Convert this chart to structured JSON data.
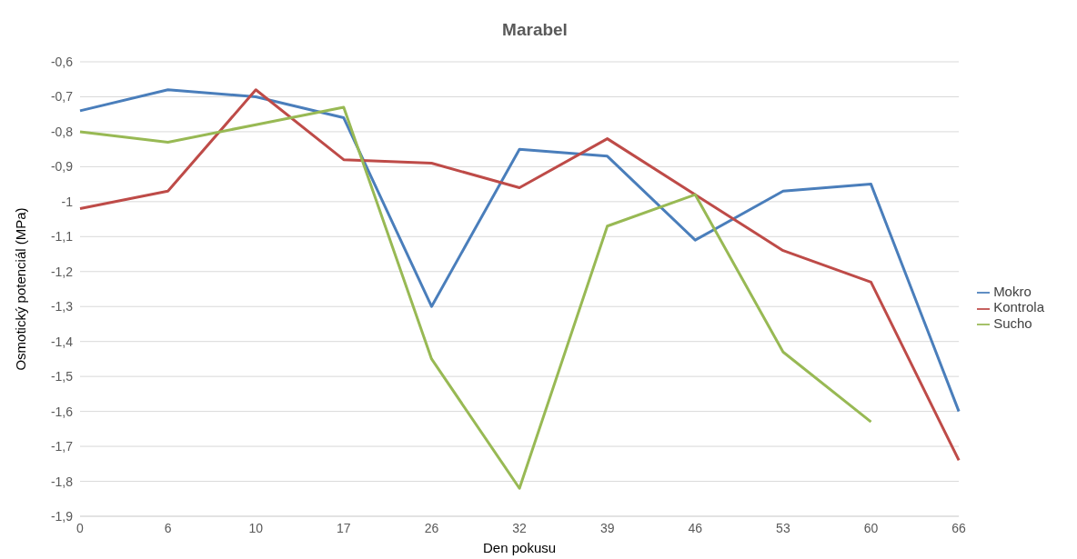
{
  "chart_data": {
    "type": "line",
    "title": "Marabel",
    "xlabel": "Den pokusu",
    "ylabel": "Osmotický potenciál (MPa)",
    "categories": [
      "0",
      "6",
      "10",
      "17",
      "26",
      "32",
      "39",
      "46",
      "53",
      "60",
      "66"
    ],
    "series": [
      {
        "name": "Mokro",
        "color": "#4a7ebb",
        "values": [
          -0.74,
          -0.68,
          -0.7,
          -0.76,
          -1.3,
          -0.85,
          -0.87,
          -1.11,
          -0.97,
          -0.95,
          -1.6
        ]
      },
      {
        "name": "Kontrola",
        "color": "#be4b48",
        "values": [
          -1.02,
          -0.97,
          -0.68,
          -0.88,
          -0.89,
          -0.96,
          -0.82,
          -0.98,
          -1.14,
          -1.23,
          -1.74
        ]
      },
      {
        "name": "Sucho",
        "color": "#98b954",
        "values": [
          -0.8,
          -0.83,
          -0.78,
          -0.73,
          -1.45,
          -1.82,
          -1.07,
          -0.98,
          -1.43,
          -1.63,
          null
        ]
      }
    ],
    "ylim": [
      -1.9,
      -0.6
    ],
    "yticks": [
      {
        "value": -1.9,
        "label": "-1,9"
      },
      {
        "value": -1.8,
        "label": "-1,8"
      },
      {
        "value": -1.7,
        "label": "-1,7"
      },
      {
        "value": -1.6,
        "label": "-1,6"
      },
      {
        "value": -1.5,
        "label": "-1,5"
      },
      {
        "value": -1.4,
        "label": "-1,4"
      },
      {
        "value": -1.3,
        "label": "-1,3"
      },
      {
        "value": -1.2,
        "label": "-1,2"
      },
      {
        "value": -1.1,
        "label": "-1,1"
      },
      -1,
      {
        "value": -0.9,
        "label": "-0,9"
      },
      {
        "value": -0.8,
        "label": "-0,8"
      },
      {
        "value": -0.7,
        "label": "-0,7"
      },
      {
        "value": -0.6,
        "label": "-0,6"
      }
    ],
    "grid": "y",
    "legend": "right",
    "marker": "none",
    "line_style": "solid"
  }
}
